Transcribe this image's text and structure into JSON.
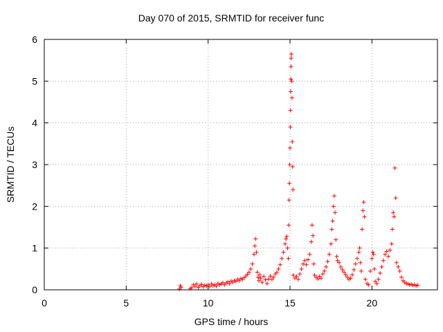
{
  "chart_data": {
    "type": "scatter",
    "title": "Day 070 of 2015, SRMTID for receiver func",
    "xlabel": "GPS time / hours",
    "ylabel": "SRMTID / TECUs",
    "xlim": [
      0,
      24
    ],
    "ylim": [
      0,
      6
    ],
    "xticks": [
      0,
      5,
      10,
      15,
      20
    ],
    "yticks": [
      0,
      1,
      2,
      3,
      4,
      5,
      6
    ],
    "grid": true,
    "marker": "+",
    "series": [
      {
        "name": "SRMTID",
        "color": "#ff0000",
        "points": [
          [
            8.25,
            0.02
          ],
          [
            8.3,
            0.1
          ],
          [
            8.35,
            0.06
          ],
          [
            8.9,
            0.03
          ],
          [
            9.0,
            0.05
          ],
          [
            9.1,
            0.12
          ],
          [
            9.2,
            0.08
          ],
          [
            9.3,
            0.14
          ],
          [
            9.4,
            0.06
          ],
          [
            9.5,
            0.1
          ],
          [
            9.6,
            0.13
          ],
          [
            9.7,
            0.07
          ],
          [
            9.8,
            0.11
          ],
          [
            9.9,
            0.09
          ],
          [
            10.0,
            0.12
          ],
          [
            10.1,
            0.08
          ],
          [
            10.2,
            0.14
          ],
          [
            10.3,
            0.1
          ],
          [
            10.4,
            0.12
          ],
          [
            10.5,
            0.09
          ],
          [
            10.6,
            0.15
          ],
          [
            10.7,
            0.12
          ],
          [
            10.8,
            0.14
          ],
          [
            10.9,
            0.17
          ],
          [
            11.0,
            0.12
          ],
          [
            11.1,
            0.16
          ],
          [
            11.2,
            0.19
          ],
          [
            11.3,
            0.15
          ],
          [
            11.4,
            0.21
          ],
          [
            11.5,
            0.18
          ],
          [
            11.6,
            0.22
          ],
          [
            11.7,
            0.2
          ],
          [
            11.8,
            0.25
          ],
          [
            11.9,
            0.22
          ],
          [
            12.0,
            0.27
          ],
          [
            12.1,
            0.25
          ],
          [
            12.2,
            0.29
          ],
          [
            12.3,
            0.33
          ],
          [
            12.4,
            0.37
          ],
          [
            12.5,
            0.42
          ],
          [
            12.6,
            0.5
          ],
          [
            12.7,
            0.62
          ],
          [
            12.8,
            0.85
          ],
          [
            12.85,
            1.05
          ],
          [
            12.9,
            1.22
          ],
          [
            12.95,
            0.9
          ],
          [
            13.0,
            0.42
          ],
          [
            13.05,
            0.3
          ],
          [
            13.1,
            0.22
          ],
          [
            13.15,
            0.36
          ],
          [
            13.2,
            0.28
          ],
          [
            13.3,
            0.18
          ],
          [
            13.4,
            0.32
          ],
          [
            13.5,
            0.24
          ],
          [
            13.6,
            0.15
          ],
          [
            13.7,
            0.26
          ],
          [
            13.8,
            0.33
          ],
          [
            13.9,
            0.25
          ],
          [
            14.0,
            0.3
          ],
          [
            14.1,
            0.38
          ],
          [
            14.2,
            0.42
          ],
          [
            14.3,
            0.5
          ],
          [
            14.4,
            0.6
          ],
          [
            14.5,
            0.75
          ],
          [
            14.6,
            0.9
          ],
          [
            14.7,
            1.1
          ],
          [
            14.75,
            1.22
          ],
          [
            14.8,
            1.28
          ],
          [
            14.85,
            1.0
          ],
          [
            14.9,
            0.75
          ],
          [
            14.92,
            1.55
          ],
          [
            14.94,
            2.15
          ],
          [
            14.96,
            2.55
          ],
          [
            14.98,
            3.0
          ],
          [
            15.0,
            3.4
          ],
          [
            15.02,
            3.9
          ],
          [
            15.03,
            4.3
          ],
          [
            15.04,
            4.75
          ],
          [
            15.05,
            5.05
          ],
          [
            15.06,
            5.35
          ],
          [
            15.07,
            5.55
          ],
          [
            15.08,
            5.65
          ],
          [
            15.1,
            5.0
          ],
          [
            15.12,
            4.6
          ],
          [
            15.14,
            3.55
          ],
          [
            15.16,
            2.95
          ],
          [
            15.18,
            2.4
          ],
          [
            15.2,
            0.35
          ],
          [
            15.3,
            0.28
          ],
          [
            15.4,
            0.32
          ],
          [
            15.5,
            0.25
          ],
          [
            15.6,
            0.38
          ],
          [
            15.7,
            0.5
          ],
          [
            15.8,
            0.62
          ],
          [
            15.9,
            0.7
          ],
          [
            16.0,
            0.6
          ],
          [
            16.1,
            0.72
          ],
          [
            16.2,
            0.85
          ],
          [
            16.3,
            1.15
          ],
          [
            16.35,
            1.55
          ],
          [
            16.4,
            1.3
          ],
          [
            16.45,
            0.62
          ],
          [
            16.5,
            0.35
          ],
          [
            16.6,
            0.3
          ],
          [
            16.7,
            0.26
          ],
          [
            16.8,
            0.32
          ],
          [
            16.9,
            0.28
          ],
          [
            17.0,
            0.38
          ],
          [
            17.1,
            0.45
          ],
          [
            17.2,
            0.55
          ],
          [
            17.3,
            0.68
          ],
          [
            17.4,
            0.85
          ],
          [
            17.5,
            1.1
          ],
          [
            17.55,
            1.45
          ],
          [
            17.6,
            1.65
          ],
          [
            17.65,
            2.0
          ],
          [
            17.7,
            2.25
          ],
          [
            17.75,
            1.85
          ],
          [
            17.8,
            1.2
          ],
          [
            17.85,
            0.8
          ],
          [
            17.9,
            0.7
          ],
          [
            18.0,
            0.65
          ],
          [
            18.1,
            0.55
          ],
          [
            18.2,
            0.48
          ],
          [
            18.3,
            0.42
          ],
          [
            18.4,
            0.36
          ],
          [
            18.5,
            0.3
          ],
          [
            18.6,
            0.25
          ],
          [
            18.7,
            0.28
          ],
          [
            18.8,
            0.36
          ],
          [
            18.9,
            0.48
          ],
          [
            19.0,
            0.62
          ],
          [
            19.1,
            0.75
          ],
          [
            19.2,
            0.9
          ],
          [
            19.25,
            1.0
          ],
          [
            19.3,
            0.65
          ],
          [
            19.35,
            0.45
          ],
          [
            19.4,
            1.45
          ],
          [
            19.45,
            1.9
          ],
          [
            19.5,
            2.1
          ],
          [
            19.55,
            1.75
          ],
          [
            19.6,
            0.25
          ],
          [
            19.7,
            0.15
          ],
          [
            19.8,
            0.12
          ],
          [
            19.9,
            0.45
          ],
          [
            20.0,
            0.75
          ],
          [
            20.05,
            0.9
          ],
          [
            20.1,
            0.85
          ],
          [
            20.15,
            0.5
          ],
          [
            20.2,
            0.2
          ],
          [
            20.3,
            0.15
          ],
          [
            20.4,
            0.25
          ],
          [
            20.5,
            0.4
          ],
          [
            20.6,
            0.55
          ],
          [
            20.7,
            0.7
          ],
          [
            20.8,
            0.85
          ],
          [
            20.9,
            0.92
          ],
          [
            21.0,
            0.8
          ],
          [
            21.1,
            0.95
          ],
          [
            21.2,
            1.1
          ],
          [
            21.25,
            1.45
          ],
          [
            21.3,
            1.85
          ],
          [
            21.35,
            1.75
          ],
          [
            21.4,
            2.92
          ],
          [
            21.45,
            2.2
          ],
          [
            21.5,
            0.65
          ],
          [
            21.6,
            0.55
          ],
          [
            21.7,
            0.45
          ],
          [
            21.8,
            0.3
          ],
          [
            21.9,
            0.22
          ],
          [
            22.0,
            0.18
          ],
          [
            22.1,
            0.15
          ],
          [
            22.2,
            0.14
          ],
          [
            22.3,
            0.12
          ],
          [
            22.4,
            0.13
          ],
          [
            22.5,
            0.11
          ],
          [
            22.6,
            0.12
          ],
          [
            22.7,
            0.1
          ],
          [
            22.8,
            0.11
          ]
        ]
      }
    ]
  },
  "colors": {
    "series": "#ff0000",
    "grid": "#a0a0a0",
    "axis": "#000000",
    "background": "#ffffff"
  }
}
